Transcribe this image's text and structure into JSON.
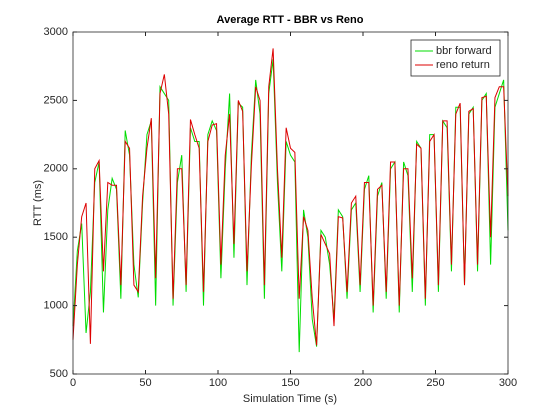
{
  "chart_data": {
    "type": "line",
    "title": "Average RTT - BBR vs Reno",
    "xlabel": "Simulation Time (s)",
    "ylabel": "RTT (ms)",
    "x": [
      0,
      3,
      6,
      9,
      12,
      15,
      18,
      21,
      24,
      27,
      30,
      33,
      36,
      39,
      42,
      45,
      48,
      51,
      54,
      57,
      60,
      63,
      66,
      69,
      72,
      75,
      78,
      81,
      84,
      87,
      90,
      93,
      96,
      99,
      102,
      105,
      108,
      111,
      114,
      117,
      120,
      123,
      126,
      129,
      132,
      135,
      138,
      141,
      144,
      147,
      150,
      153,
      156,
      159,
      162,
      165,
      168,
      171,
      174,
      177,
      180,
      183,
      186,
      189,
      192,
      195,
      198,
      201,
      204,
      207,
      210,
      213,
      216,
      219,
      222,
      225,
      228,
      231,
      234,
      237,
      240,
      243,
      246,
      249,
      252,
      255,
      258,
      261,
      264,
      267,
      270,
      273,
      276,
      279,
      282,
      285,
      288,
      291,
      294,
      297,
      300
    ],
    "series": [
      {
        "name": "bbr forward",
        "color": "#00dd00",
        "values": [
          850,
          1400,
          1600,
          800,
          1100,
          1900,
          2050,
          950,
          1700,
          1930,
          1850,
          1050,
          2280,
          2100,
          1300,
          1060,
          1750,
          2250,
          2350,
          1000,
          2600,
          2550,
          2500,
          1000,
          1900,
          2100,
          1100,
          2300,
          2200,
          2200,
          1000,
          2250,
          2350,
          2280,
          1200,
          2000,
          2550,
          1350,
          2480,
          2450,
          1150,
          2100,
          2650,
          2400,
          1050,
          2550,
          2800,
          1900,
          1250,
          2200,
          2100,
          2050,
          660,
          1700,
          1500,
          900,
          700,
          1550,
          1500,
          1300,
          900,
          1700,
          1650,
          1050,
          1700,
          1750,
          1100,
          1850,
          1950,
          950,
          1800,
          1900,
          1050,
          2000,
          2050,
          950,
          2050,
          1950,
          1100,
          2200,
          2150,
          1000,
          2250,
          2250,
          1100,
          2350,
          2300,
          1250,
          2450,
          2450,
          1150,
          2400,
          2450,
          1250,
          2500,
          2550,
          1300,
          2450,
          2550,
          2650,
          1550
        ]
      },
      {
        "name": "reno return",
        "color": "#dd0000",
        "values": [
          750,
          1300,
          1650,
          1750,
          720,
          2000,
          2060,
          1250,
          1900,
          1880,
          1880,
          1150,
          2200,
          2150,
          1150,
          1100,
          1800,
          2150,
          2370,
          1200,
          2550,
          2690,
          2400,
          1050,
          2000,
          2000,
          1150,
          2360,
          2250,
          2150,
          1100,
          2200,
          2320,
          2330,
          1300,
          2100,
          2400,
          1450,
          2500,
          2420,
          1250,
          2020,
          2600,
          2500,
          1150,
          2600,
          2880,
          2000,
          1350,
          2300,
          2150,
          2120,
          1050,
          1650,
          1550,
          1050,
          710,
          1520,
          1450,
          1380,
          850,
          1650,
          1640,
          1100,
          1750,
          1800,
          1150,
          1900,
          1900,
          1000,
          1850,
          1880,
          1100,
          2050,
          2050,
          1000,
          2000,
          2000,
          1200,
          2180,
          2150,
          1050,
          2200,
          2250,
          1150,
          2350,
          2350,
          1300,
          2400,
          2480,
          1150,
          2420,
          2440,
          1300,
          2520,
          2530,
          1500,
          2520,
          2600,
          2600,
          1800
        ]
      }
    ],
    "xlim": [
      0,
      300
    ],
    "xticks": [
      0,
      50,
      100,
      150,
      200,
      250,
      300
    ],
    "ylim": [
      500,
      3000
    ],
    "yticks": [
      500,
      1000,
      1500,
      2000,
      2500,
      3000
    ],
    "legend": "northeast"
  }
}
